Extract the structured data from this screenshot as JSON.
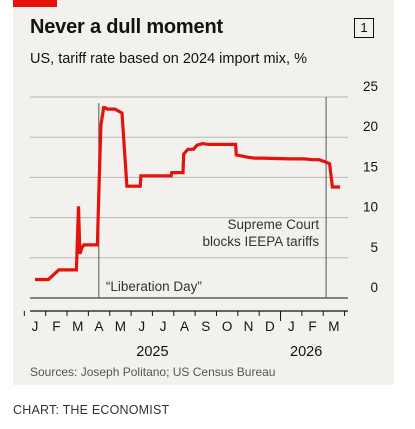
{
  "chart_data": {
    "type": "line",
    "title": "Never a dull moment",
    "subtitle": "US, tariff rate based on 2024 import mix, %",
    "badge": "1",
    "ylim": [
      0,
      25
    ],
    "y_ticks": [
      "25",
      "20",
      "15",
      "10",
      "5",
      "0"
    ],
    "x_tick_labels": [
      "J",
      "F",
      "M",
      "A",
      "M",
      "J",
      "J",
      "A",
      "S",
      "O",
      "N",
      "D",
      "J",
      "F",
      "M"
    ],
    "x_years": [
      "2025",
      "2026"
    ],
    "grid": true,
    "series": [
      {
        "color": "#e3120b",
        "x": [
          "2025-01-01",
          "2025-01-20",
          "2025-02-04",
          "2025-03-01",
          "2025-03-04",
          "2025-03-06",
          "2025-03-09",
          "2025-03-12",
          "2025-03-31",
          "2025-04-02",
          "2025-04-05",
          "2025-04-09",
          "2025-04-10",
          "2025-04-15",
          "2025-04-25",
          "2025-05-05",
          "2025-05-12",
          "2025-05-31",
          "2025-06-01",
          "2025-06-15",
          "2025-07-14",
          "2025-07-15",
          "2025-07-31",
          "2025-08-01",
          "2025-08-07",
          "2025-08-15",
          "2025-08-20",
          "2025-08-28",
          "2025-09-05",
          "2025-09-20",
          "2025-10-14",
          "2025-10-15",
          "2025-11-01",
          "2025-11-10",
          "2025-11-20",
          "2025-12-31",
          "2026-01-20",
          "2026-02-01",
          "2026-02-10",
          "2026-02-20",
          "2026-02-25",
          "2026-03-01",
          "2026-03-12"
        ],
        "values": [
          2.3,
          2.3,
          3.5,
          3.5,
          11.4,
          5.5,
          6.3,
          6.6,
          6.6,
          13.0,
          21.5,
          23.7,
          23.7,
          23.5,
          23.5,
          23.0,
          13.9,
          13.9,
          15.2,
          15.2,
          15.2,
          15.6,
          15.6,
          17.9,
          18.5,
          18.5,
          19.0,
          19.2,
          19.1,
          19.1,
          19.1,
          17.8,
          17.5,
          17.4,
          17.4,
          17.3,
          17.3,
          17.2,
          17.2,
          16.9,
          16.7,
          13.8,
          13.8
        ]
      }
    ],
    "annotations": [
      {
        "date": "2025-04-02",
        "label": "“Liberation Day”"
      },
      {
        "date": "2026-02-20",
        "label_lines": [
          "Supreme Court",
          "blocks IEEPA tariffs"
        ]
      }
    ],
    "source": "Sources: Joseph Politano; US Census Bureau"
  },
  "credit": "CHART: THE ECONOMIST"
}
